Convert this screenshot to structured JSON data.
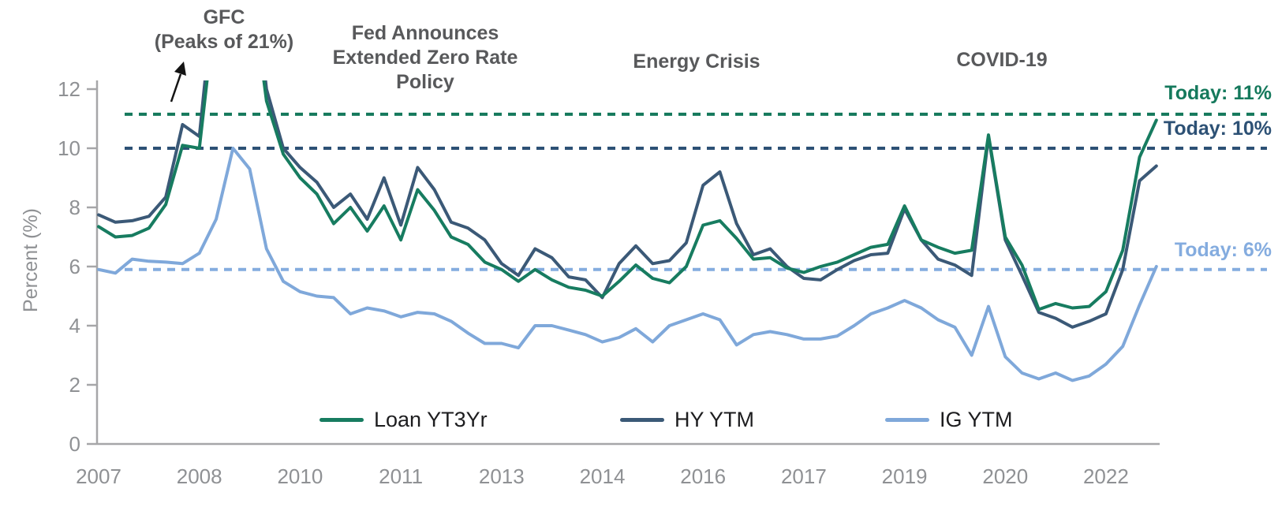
{
  "chart_data": {
    "type": "line",
    "title": "",
    "ylabel": "Percent (%)",
    "ylim": [
      0,
      12
    ],
    "y_ticks": [
      0,
      2,
      4,
      6,
      8,
      10,
      12
    ],
    "xlim": [
      2007,
      2022.8
    ],
    "x_tick_positions": [
      2007,
      2008.5,
      2010,
      2011.5,
      2013,
      2014.5,
      2016,
      2017.5,
      2019,
      2020.5,
      2022
    ],
    "x_tick_labels": [
      "2007",
      "2008",
      "2010",
      "2011",
      "2013",
      "2014",
      "2016",
      "2017",
      "2019",
      "2020",
      "2022"
    ],
    "grid": false,
    "legend_position": "bottom",
    "x": [
      2007,
      2007.25,
      2007.5,
      2007.75,
      2008,
      2008.25,
      2008.5,
      2008.75,
      2009,
      2009.25,
      2009.5,
      2009.75,
      2010,
      2010.25,
      2010.5,
      2010.75,
      2011,
      2011.25,
      2011.5,
      2011.75,
      2012,
      2012.25,
      2012.5,
      2012.75,
      2013,
      2013.25,
      2013.5,
      2013.75,
      2014,
      2014.25,
      2014.5,
      2014.75,
      2015,
      2015.25,
      2015.5,
      2015.75,
      2016,
      2016.25,
      2016.5,
      2016.75,
      2017,
      2017.25,
      2017.5,
      2017.75,
      2018,
      2018.25,
      2018.5,
      2018.75,
      2019,
      2019.25,
      2019.5,
      2019.75,
      2020,
      2020.25,
      2020.5,
      2020.75,
      2021,
      2021.25,
      2021.5,
      2021.75,
      2022,
      2022.25,
      2022.5,
      2022.75
    ],
    "series": [
      {
        "name": "Loan YT3Yr",
        "color": "#177c60",
        "values": [
          7.35,
          7.0,
          7.05,
          7.3,
          8.1,
          10.1,
          10.0,
          15.0,
          21.0,
          16.0,
          11.6,
          9.8,
          9.0,
          8.45,
          7.45,
          8.0,
          7.2,
          8.05,
          6.9,
          8.6,
          7.9,
          7.0,
          6.75,
          6.15,
          5.9,
          5.5,
          5.9,
          5.55,
          5.3,
          5.2,
          5.0,
          5.5,
          6.05,
          5.6,
          5.45,
          6.0,
          7.4,
          7.55,
          6.95,
          6.25,
          6.3,
          5.95,
          5.8,
          6.0,
          6.15,
          6.4,
          6.65,
          6.75,
          8.05,
          6.9,
          6.65,
          6.45,
          6.55,
          10.45,
          7.0,
          6.05,
          4.55,
          4.75,
          4.6,
          4.65,
          5.15,
          6.55,
          9.7,
          10.95
        ]
      },
      {
        "name": "HY YTM",
        "color": "#3b5977",
        "values": [
          7.75,
          7.5,
          7.55,
          7.7,
          8.35,
          10.8,
          10.4,
          16.0,
          20.5,
          17.0,
          12.0,
          10.0,
          9.35,
          8.85,
          8.0,
          8.45,
          7.6,
          9.0,
          7.4,
          9.35,
          8.6,
          7.5,
          7.3,
          6.9,
          6.1,
          5.7,
          6.6,
          6.3,
          5.65,
          5.55,
          4.95,
          6.1,
          6.7,
          6.1,
          6.2,
          6.8,
          8.75,
          9.2,
          7.45,
          6.4,
          6.6,
          6.0,
          5.6,
          5.55,
          5.9,
          6.2,
          6.4,
          6.45,
          7.95,
          6.9,
          6.25,
          6.05,
          5.7,
          10.4,
          6.9,
          5.7,
          4.45,
          4.25,
          3.95,
          4.15,
          4.4,
          5.9,
          8.9,
          9.4
        ]
      },
      {
        "name": "IG YTM",
        "color": "#7fa8da",
        "values": [
          5.9,
          5.78,
          6.25,
          6.18,
          6.15,
          6.1,
          6.45,
          7.6,
          10.0,
          9.3,
          6.6,
          5.5,
          5.15,
          5.0,
          4.95,
          4.4,
          4.6,
          4.5,
          4.3,
          4.45,
          4.4,
          4.15,
          3.75,
          3.4,
          3.4,
          3.25,
          4.0,
          4.0,
          3.85,
          3.7,
          3.45,
          3.6,
          3.9,
          3.45,
          4.0,
          4.2,
          4.4,
          4.2,
          3.35,
          3.7,
          3.8,
          3.7,
          3.55,
          3.55,
          3.65,
          4.0,
          4.4,
          4.6,
          4.85,
          4.6,
          4.2,
          3.95,
          3.0,
          4.65,
          2.95,
          2.4,
          2.2,
          2.4,
          2.15,
          2.3,
          2.7,
          3.3,
          4.7,
          6.0
        ]
      }
    ],
    "reference_lines": [
      {
        "label": "Today: 11%",
        "value": 11.15,
        "color": "#15795c"
      },
      {
        "label": "Today: 10%",
        "value": 10.0,
        "color": "#2d5175"
      },
      {
        "label": "Today: 6%",
        "value": 5.9,
        "color": "#84acdf"
      }
    ],
    "annotations": [
      {
        "id": "gfc",
        "lines": [
          "GFC",
          "(Peaks of 21%)"
        ]
      },
      {
        "id": "fed",
        "lines": [
          "Fed Announces",
          "Extended Zero Rate",
          "Policy"
        ]
      },
      {
        "id": "energy",
        "lines": [
          "Energy Crisis"
        ]
      },
      {
        "id": "covid",
        "lines": [
          "COVID-19"
        ]
      }
    ]
  }
}
